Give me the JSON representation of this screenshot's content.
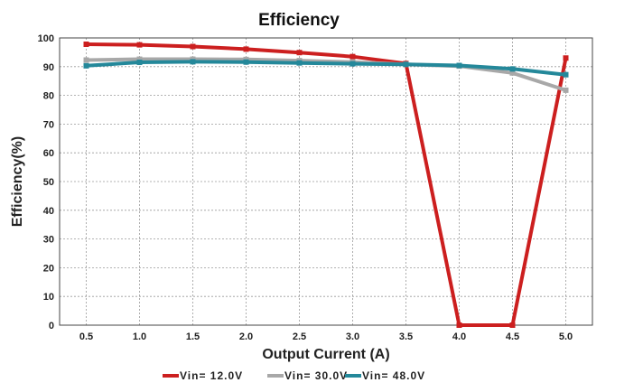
{
  "chart_data": {
    "type": "line",
    "title": "Efficiency",
    "xlabel": "Output Current (A)",
    "ylabel": "Efficiency(%)",
    "x": [
      0.5,
      1.0,
      1.5,
      2.0,
      2.5,
      3.0,
      3.5,
      4.0,
      4.5,
      5.0
    ],
    "x_tick_labels": [
      "0.5",
      "1.0",
      "1.5",
      "2.0",
      "2.5",
      "3.0",
      "3.5",
      "4.0",
      "4.5",
      "5.0"
    ],
    "xlim": [
      0.25,
      5.25
    ],
    "ylim": [
      0,
      100
    ],
    "y_ticks": [
      0,
      10,
      20,
      30,
      40,
      50,
      60,
      70,
      80,
      90,
      100
    ],
    "grid": true,
    "legend_position": "bottom",
    "series": [
      {
        "name": "Vin= 12.0V",
        "color": "#cc1f1f",
        "values": [
          97.8,
          97.6,
          97.0,
          96.1,
          94.9,
          93.5,
          91.1,
          0,
          0,
          93.0
        ]
      },
      {
        "name": "Vin= 30.0V",
        "color": "#a8a8a8",
        "values": [
          92.3,
          92.6,
          92.6,
          92.5,
          92.1,
          91.6,
          90.8,
          90.2,
          87.8,
          81.8
        ]
      },
      {
        "name": "Vin= 48.0V",
        "color": "#24889a",
        "values": [
          90.3,
          91.5,
          91.7,
          91.6,
          91.3,
          91.0,
          90.8,
          90.4,
          89.2,
          87.2
        ]
      }
    ]
  }
}
